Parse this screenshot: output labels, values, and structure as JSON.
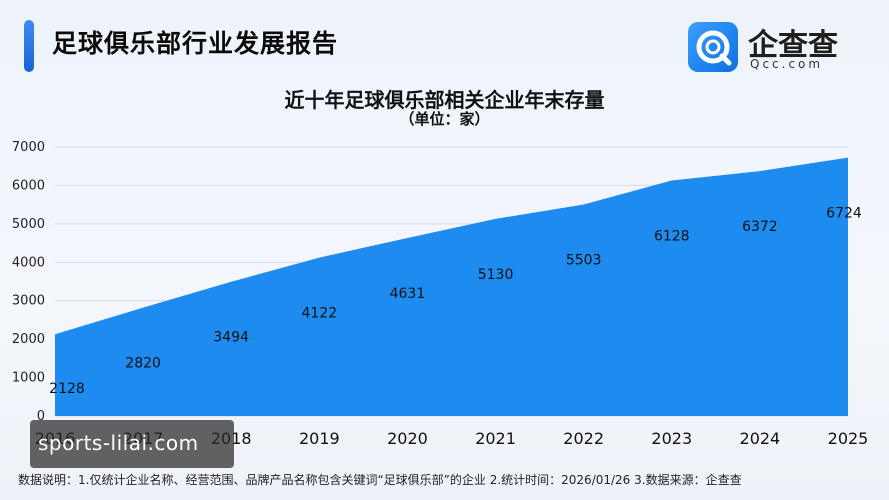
{
  "header": {
    "title": "足球俱乐部行业发展报告"
  },
  "logo": {
    "name_cn": "企查查",
    "name_en": "Qcc.com"
  },
  "chart_data": {
    "type": "area",
    "title": "近十年足球俱乐部相关企业年末存量",
    "subtitle": "（单位：家）",
    "x": [
      "2016",
      "2017",
      "2018",
      "2019",
      "2020",
      "2021",
      "2022",
      "2023",
      "2024",
      "2025"
    ],
    "series": [
      {
        "values": [
          2128,
          2820,
          3494,
          4122,
          4631,
          5130,
          5503,
          6128,
          6372,
          6724
        ]
      }
    ],
    "data_labels": [
      "2128",
      "2820",
      "3494",
      "4122",
      "4631",
      "5130",
      "5503",
      "6128",
      "6372",
      "6724"
    ],
    "ylim": [
      0,
      7000
    ],
    "yticks": [
      0,
      1000,
      2000,
      3000,
      4000,
      5000,
      6000,
      7000
    ],
    "grid": true,
    "fill_color": "#1d8bef"
  },
  "watermark": {
    "text": "sports-lilai.com"
  },
  "footnote": "数据说明：1.仅统计企业名称、经营范围、品牌产品名称包含关键词“足球俱乐部”的企业   2.统计时间：2026/01/26   3.数据来源：企查查"
}
